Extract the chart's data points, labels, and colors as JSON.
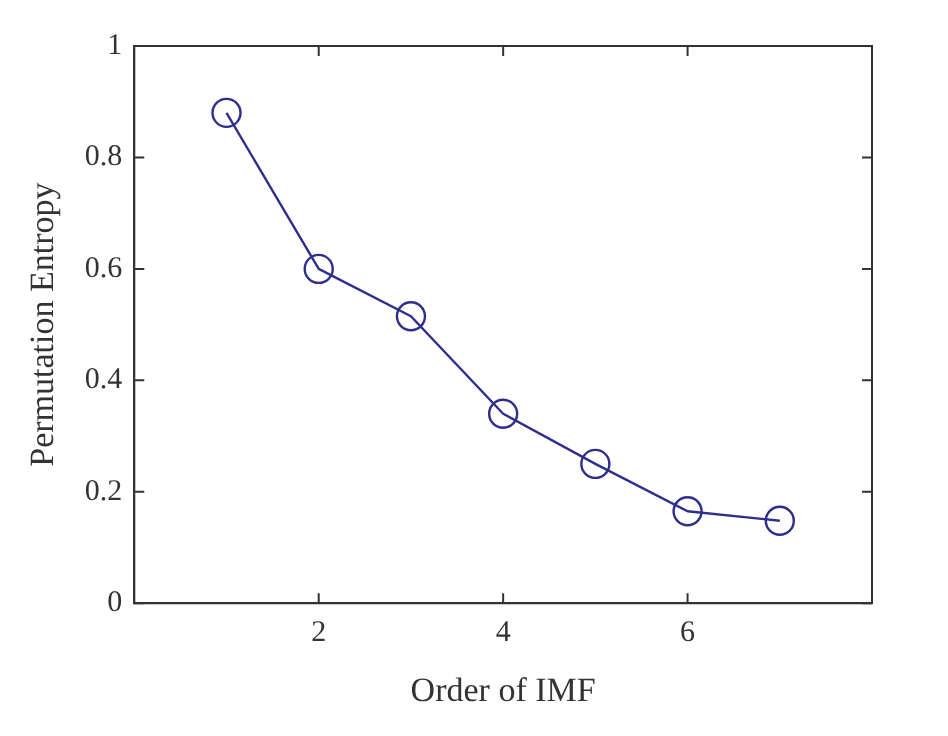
{
  "chart_data": {
    "type": "line",
    "xlabel": "Order of IMF",
    "ylabel": "Permutation Entropy",
    "x": [
      1,
      2,
      3,
      4,
      5,
      6,
      7
    ],
    "series": [
      {
        "color": "#2e2e8c",
        "values": [
          0.88,
          0.6,
          0.515,
          0.34,
          0.25,
          0.165,
          0.148
        ]
      }
    ],
    "xlim": [
      0,
      8
    ],
    "xticks": [
      2,
      4,
      6
    ],
    "ylim": [
      0,
      1
    ],
    "yticks": [
      0,
      0.2,
      0.4,
      0.6,
      0.8,
      1
    ],
    "grid": false,
    "legend": false,
    "marker": "circle",
    "line_style": "solid"
  }
}
